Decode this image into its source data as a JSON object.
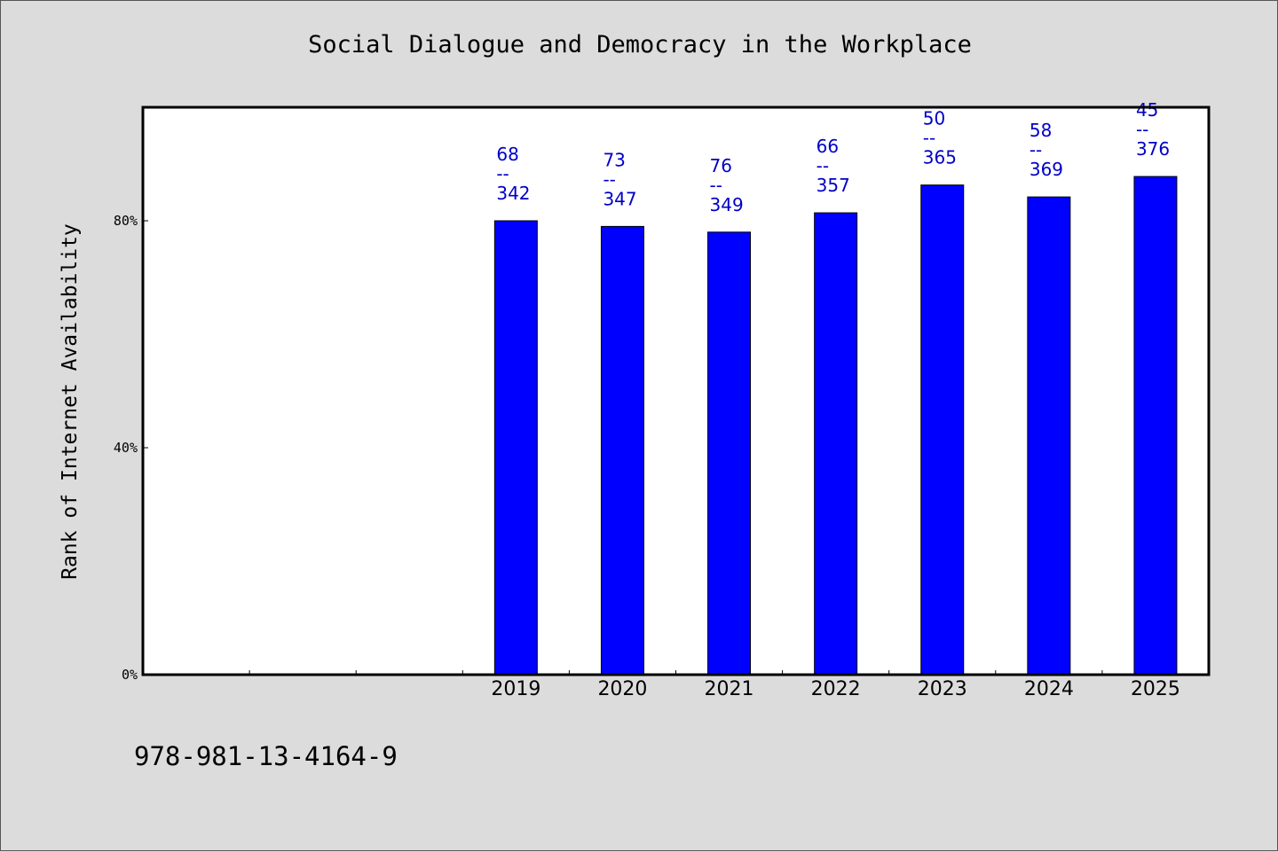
{
  "chart_data": {
    "type": "bar",
    "title": "Social Dialogue and Democracy in the Workplace",
    "xlabel": "",
    "ylabel": "Rank of Internet Availability",
    "categories": [
      "2019",
      "2020",
      "2021",
      "2022",
      "2023",
      "2024",
      "2025"
    ],
    "values": [
      80,
      79,
      78,
      81.4,
      86.3,
      84.2,
      87.8
    ],
    "data_labels": [
      {
        "top": "68",
        "sep": "--",
        "bottom": "342"
      },
      {
        "top": "73",
        "sep": "--",
        "bottom": "347"
      },
      {
        "top": "76",
        "sep": "--",
        "bottom": "349"
      },
      {
        "top": "66",
        "sep": "--",
        "bottom": "357"
      },
      {
        "top": "50",
        "sep": "--",
        "bottom": "365"
      },
      {
        "top": "58",
        "sep": "--",
        "bottom": "369"
      },
      {
        "top": "45",
        "sep": "--",
        "bottom": "376"
      }
    ],
    "yticks": [
      {
        "value": 0,
        "label": "0%"
      },
      {
        "value": 40,
        "label": "40%"
      },
      {
        "value": 80,
        "label": "80%"
      }
    ],
    "ylim": [
      0,
      100
    ],
    "x_slots": 10,
    "empty_leading_slots": 3,
    "grid": false,
    "legend": "none",
    "colors": {
      "bar": "#0000ff",
      "label": "#0000c8",
      "background": "#dcdcdc",
      "plot": "#ffffff"
    }
  },
  "footer": {
    "code": "978-981-13-4164-9"
  }
}
